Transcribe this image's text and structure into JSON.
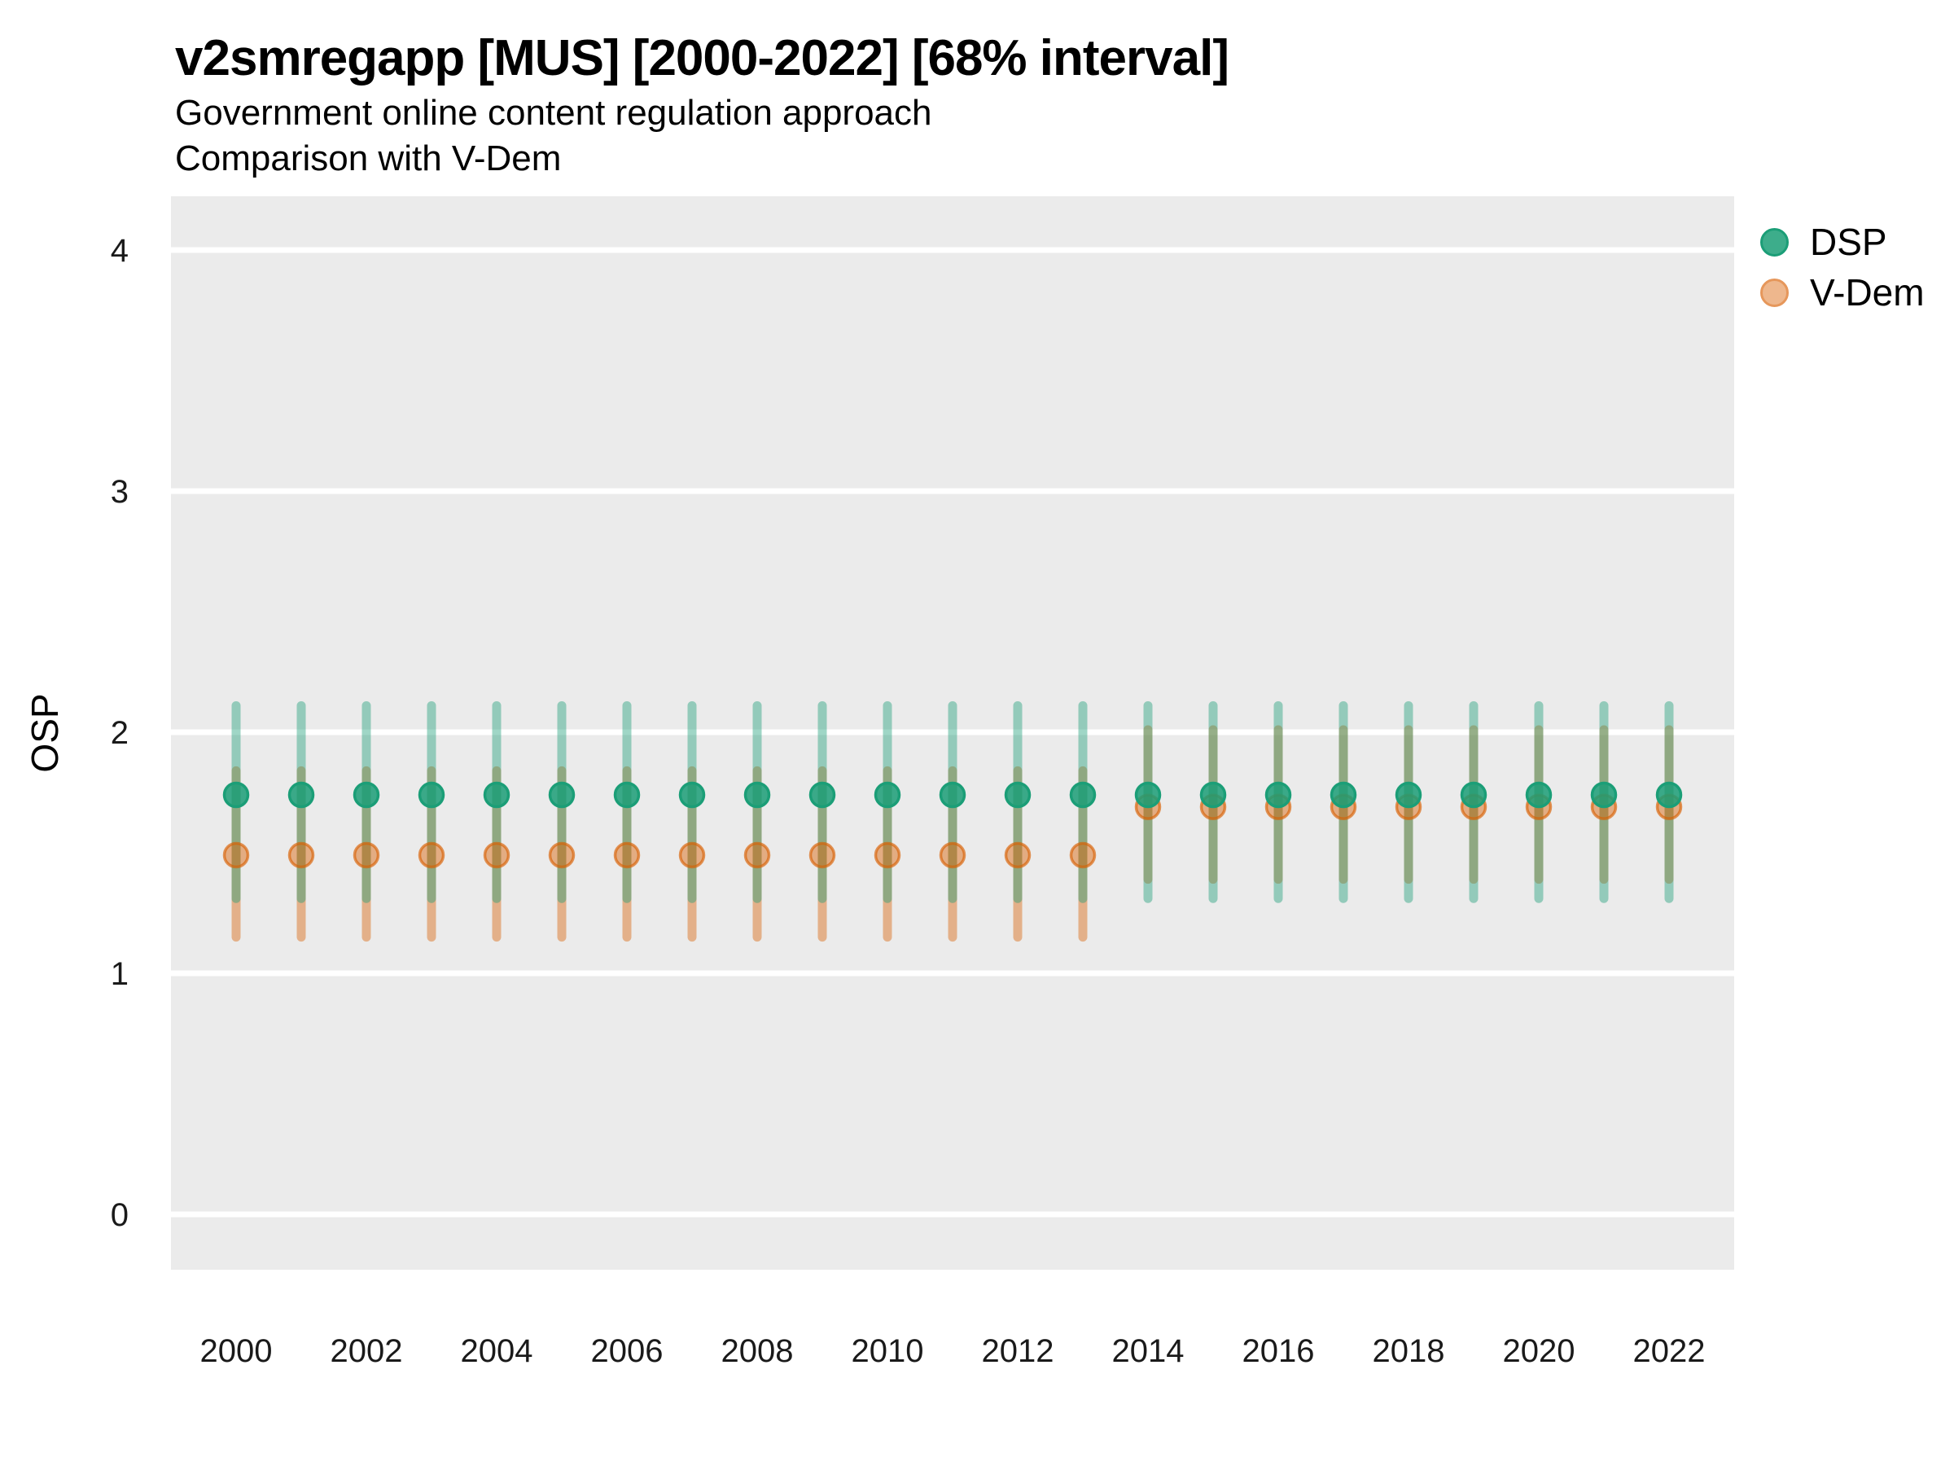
{
  "title": "v2smregapp [MUS] [2000-2022] [68% interval]",
  "subtitle1": "Government online content regulation approach",
  "subtitle2": "Comparison with V-Dem",
  "panel": {
    "background": "#EBEBEB",
    "gridline_color": "#FFFFFF"
  },
  "chart_data": {
    "type": "pointrange",
    "title": "v2smregapp [MUS] [2000-2022] [68% interval]",
    "subtitle": [
      "Government online content regulation approach",
      "Comparison with V-Dem"
    ],
    "xlabel": "",
    "ylabel": "OSP",
    "ylim": [
      -0.25,
      4.25
    ],
    "yticks": [
      0,
      1,
      2,
      3,
      4
    ],
    "xticks": [
      2000,
      2002,
      2004,
      2006,
      2008,
      2010,
      2012,
      2014,
      2016,
      2018,
      2020,
      2022
    ],
    "grid": "horizontal-major-only",
    "legend_position": "top-right",
    "x": [
      2000,
      2001,
      2002,
      2003,
      2004,
      2005,
      2006,
      2007,
      2008,
      2009,
      2010,
      2011,
      2012,
      2013,
      2014,
      2015,
      2016,
      2017,
      2018,
      2019,
      2020,
      2021,
      2022
    ],
    "series": [
      {
        "name": "V-Dem",
        "interval_color": "#D95F02",
        "interval_opacity": 0.42,
        "point_fill": "#D95F02",
        "point_fill_opacity": 0.45,
        "point_stroke": "#D95F02",
        "point_stroke_opacity": 0.65,
        "mid": [
          1.49,
          1.49,
          1.49,
          1.49,
          1.49,
          1.49,
          1.49,
          1.49,
          1.49,
          1.49,
          1.49,
          1.49,
          1.49,
          1.49,
          1.69,
          1.69,
          1.69,
          1.69,
          1.69,
          1.69,
          1.69,
          1.69,
          1.69
        ],
        "lo": [
          1.15,
          1.15,
          1.15,
          1.15,
          1.15,
          1.15,
          1.15,
          1.15,
          1.15,
          1.15,
          1.15,
          1.15,
          1.15,
          1.15,
          1.39,
          1.39,
          1.39,
          1.39,
          1.39,
          1.39,
          1.39,
          1.39,
          1.39
        ],
        "hi": [
          1.84,
          1.84,
          1.84,
          1.84,
          1.84,
          1.84,
          1.84,
          1.84,
          1.84,
          1.84,
          1.84,
          1.84,
          1.84,
          1.84,
          2.01,
          2.01,
          2.01,
          2.01,
          2.01,
          2.01,
          2.01,
          2.01,
          2.01
        ]
      },
      {
        "name": "DSP",
        "interval_color": "#1B9E77",
        "interval_opacity": 0.42,
        "point_fill": "#1B9E77",
        "point_fill_opacity": 0.85,
        "point_stroke": "#1B9E77",
        "point_stroke_opacity": 1,
        "mid": [
          1.74,
          1.74,
          1.74,
          1.74,
          1.74,
          1.74,
          1.74,
          1.74,
          1.74,
          1.74,
          1.74,
          1.74,
          1.74,
          1.74,
          1.74,
          1.74,
          1.74,
          1.74,
          1.74,
          1.74,
          1.74,
          1.74,
          1.74
        ],
        "lo": [
          1.31,
          1.31,
          1.31,
          1.31,
          1.31,
          1.31,
          1.31,
          1.31,
          1.31,
          1.31,
          1.31,
          1.31,
          1.31,
          1.31,
          1.31,
          1.31,
          1.31,
          1.31,
          1.31,
          1.31,
          1.31,
          1.31,
          1.31
        ],
        "hi": [
          2.11,
          2.11,
          2.11,
          2.11,
          2.11,
          2.11,
          2.11,
          2.11,
          2.11,
          2.11,
          2.11,
          2.11,
          2.11,
          2.11,
          2.11,
          2.11,
          2.11,
          2.11,
          2.11,
          2.11,
          2.11,
          2.11,
          2.11
        ]
      }
    ]
  },
  "legend": {
    "items": [
      {
        "label": "DSP"
      },
      {
        "label": "V-Dem"
      }
    ]
  }
}
